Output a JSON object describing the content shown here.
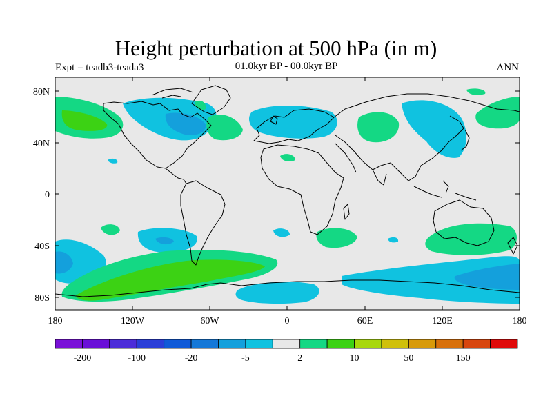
{
  "header": {
    "title": "Height perturbation at 500 hPa (in m)",
    "experiment": "Expt = teadb3-teada3",
    "period": "01.0kyr BP - 00.0kyr BP",
    "season": "ANN"
  },
  "axes": {
    "lat_ticks": [
      "80N",
      "40N",
      "0",
      "40S",
      "80S"
    ],
    "lon_ticks": [
      "180",
      "120W",
      "60W",
      "0",
      "60E",
      "120E",
      "180"
    ]
  },
  "colorbar": {
    "colors": [
      "#7a10d8",
      "#6a0fd8",
      "#4c2cd9",
      "#2a3ed8",
      "#0f5ad8",
      "#1478d8",
      "#14a0dc",
      "#10c2e0",
      "#e8e8e8",
      "#14d884",
      "#3cd214",
      "#a8d80c",
      "#d0c00a",
      "#d89a0a",
      "#d8700a",
      "#d8460e",
      "#e00a0a"
    ],
    "tick_labels": [
      "-200",
      "-100",
      "-20",
      "-5",
      "2",
      "10",
      "50",
      "150"
    ]
  },
  "colors": {
    "background": "#e8e8e8",
    "neg_weak": "#10c2e0",
    "neg_mid": "#14a0dc",
    "pos_weak": "#14d884",
    "pos_mid": "#3cd214"
  }
}
